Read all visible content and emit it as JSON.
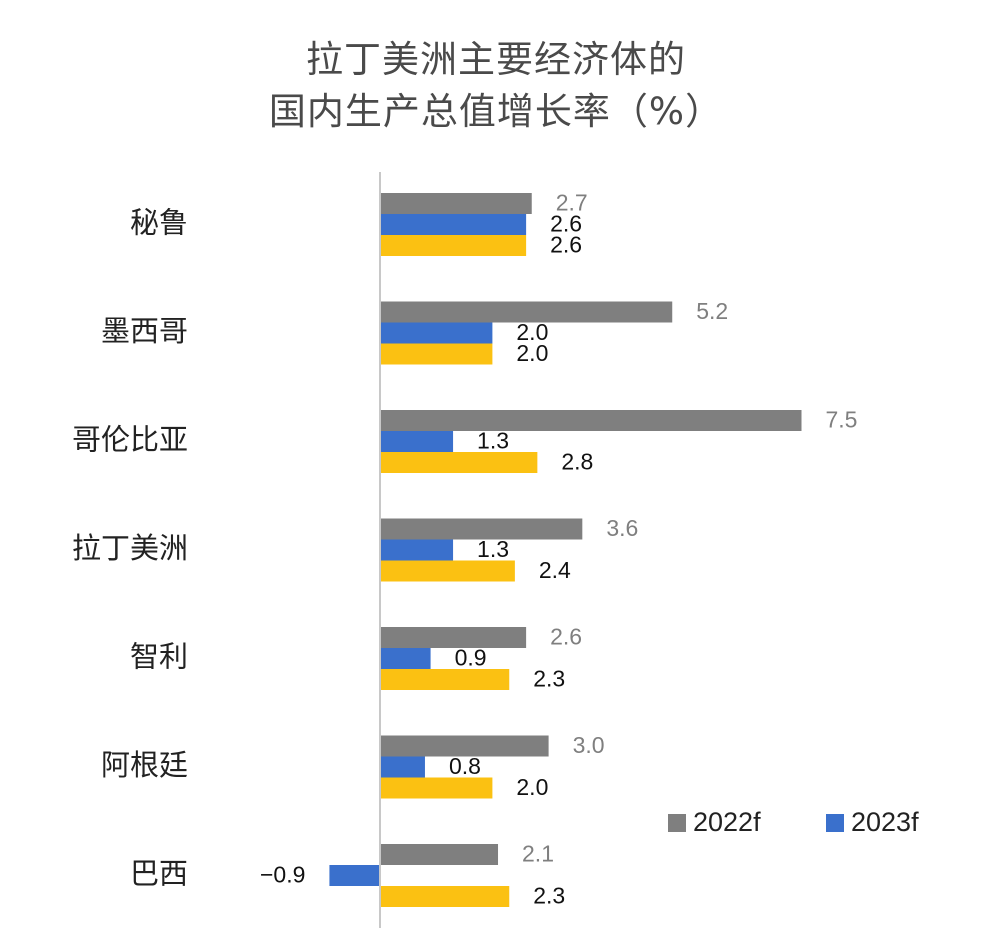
{
  "chart_data": {
    "type": "bar",
    "orientation": "horizontal",
    "title_lines": [
      "拉丁美洲主要经济体的",
      "国内生产总值增长率（%）"
    ],
    "categories": [
      "秘鲁",
      "墨西哥",
      "哥伦比亚",
      "拉丁美洲",
      "智利",
      "阿根廷",
      "巴西"
    ],
    "series": [
      {
        "name": "2022f",
        "color": "#7f7f7f",
        "label_color": "#7f7f7f",
        "values": [
          2.7,
          5.2,
          7.5,
          3.6,
          2.6,
          3.0,
          2.1
        ],
        "labels": [
          "2.7",
          "5.2",
          "7.5",
          "3.6",
          "2.6",
          "3.0",
          "2.1"
        ]
      },
      {
        "name": "2023f",
        "color": "#3a70cc",
        "label_color": "#111111",
        "values": [
          2.6,
          2.0,
          1.3,
          1.3,
          0.9,
          0.8,
          -0.9
        ],
        "labels": [
          "2.6",
          "2.0",
          "1.3",
          "1.3",
          "0.9",
          "0.8",
          "−0.9"
        ]
      },
      {
        "name": "",
        "color": "#fbc112",
        "label_color": "#111111",
        "values": [
          2.6,
          2.0,
          2.8,
          2.4,
          2.3,
          2.0,
          2.3
        ],
        "labels": [
          "2.6",
          "2.0",
          "2.8",
          "2.4",
          "2.3",
          "2.0",
          "2.3"
        ]
      }
    ],
    "legend": {
      "position": "bottom-right",
      "entries": [
        "2022f",
        "2023f"
      ]
    },
    "xlim": [
      -1.0,
      7.6
    ],
    "axis_line_color": "#c8c8c8",
    "grid": false
  }
}
